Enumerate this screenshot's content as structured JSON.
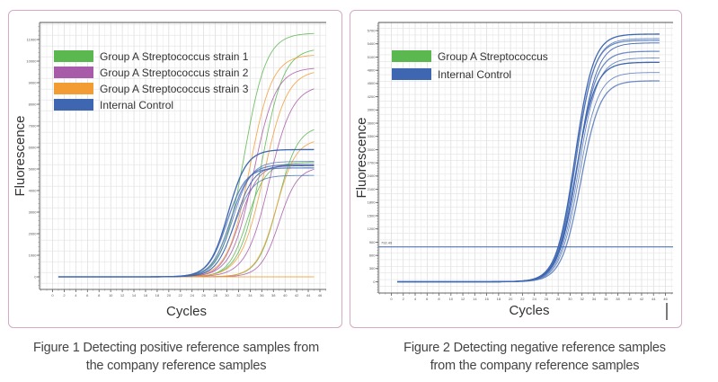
{
  "captions": {
    "figure1": [
      "Figure 1 Detecting positive reference samples from",
      "the company reference samples"
    ],
    "figure2": [
      "Figure 2 Detecting negative reference samples",
      "from the company reference samples"
    ]
  },
  "chart_data": [
    {
      "type": "line",
      "title": "",
      "xlabel": "Cycles",
      "ylabel": "Fluorescence",
      "xlim": [
        0,
        46
      ],
      "ylim": [
        -800,
        12200
      ],
      "x_ticks": [
        0,
        2,
        4,
        6,
        8,
        10,
        12,
        14,
        16,
        18,
        20,
        22,
        24,
        26,
        28,
        30,
        32,
        34,
        36,
        38,
        40,
        42,
        44,
        46
      ],
      "y_ticks": [
        0,
        1000,
        2000,
        3000,
        4000,
        5000,
        6000,
        7000,
        8000,
        9000,
        10000,
        11000
      ],
      "grid": true,
      "legend_position": "top-left",
      "legend": [
        {
          "name": "Group A Streptococcus strain 1",
          "color": "#5bb74f"
        },
        {
          "name": "Group A Streptococcus strain 2",
          "color": "#a85ba8"
        },
        {
          "name": "Group A Streptococcus strain 3",
          "color": "#f39c34"
        },
        {
          "name": "Internal Control",
          "color": "#3f67b1"
        }
      ],
      "x_range_of_curves": [
        1,
        45
      ],
      "series": [
        {
          "name": "Group A Streptococcus strain 1",
          "color": "#5bb74f",
          "curves": [
            {
              "plateau": 11300,
              "midpoint": 33.0,
              "slope": 1.9
            },
            {
              "plateau": 10600,
              "midpoint": 36.0,
              "slope": 1.9
            },
            {
              "plateau": 7000,
              "midpoint": 38.8,
              "slope": 1.7
            },
            {
              "plateau": 5300,
              "midpoint": 33.5,
              "slope": 1.6
            }
          ]
        },
        {
          "name": "Group A Streptococcus strain 2",
          "color": "#a85ba8",
          "curves": [
            {
              "plateau": 9700,
              "midpoint": 34.6,
              "slope": 1.9
            },
            {
              "plateau": 8900,
              "midpoint": 37.3,
              "slope": 2.0
            },
            {
              "plateau": 5100,
              "midpoint": 39.0,
              "slope": 1.6
            },
            {
              "plateau": 5200,
              "midpoint": 32.2,
              "slope": 1.6
            }
          ]
        },
        {
          "name": "Group A Streptococcus strain 3",
          "color": "#f39c34",
          "curves": [
            {
              "plateau": 10300,
              "midpoint": 34.0,
              "slope": 1.9
            },
            {
              "plateau": 9600,
              "midpoint": 36.4,
              "slope": 2.0
            },
            {
              "plateau": 6400,
              "midpoint": 38.5,
              "slope": 1.7
            },
            {
              "plateau": 0,
              "midpoint": 30,
              "slope": 2
            }
          ]
        },
        {
          "name": "Internal Control",
          "color": "#3f67b1",
          "curves": [
            {
              "plateau": 5900,
              "midpoint": 30.2,
              "slope": 1.6
            },
            {
              "plateau": 5350,
              "midpoint": 31.0,
              "slope": 1.6
            },
            {
              "plateau": 5200,
              "midpoint": 30.6,
              "slope": 1.6
            },
            {
              "plateau": 5150,
              "midpoint": 31.4,
              "slope": 1.6
            },
            {
              "plateau": 5050,
              "midpoint": 30.0,
              "slope": 1.6
            },
            {
              "plateau": 4700,
              "midpoint": 31.2,
              "slope": 1.6
            }
          ]
        }
      ]
    },
    {
      "type": "line",
      "title": "",
      "xlabel": "Cycles",
      "ylabel": "Fluorescence",
      "xlim": [
        -2,
        46
      ],
      "ylim": [
        -250,
        5850
      ],
      "x_ticks": [
        0,
        2,
        4,
        6,
        8,
        10,
        12,
        14,
        16,
        18,
        20,
        22,
        24,
        26,
        28,
        30,
        32,
        34,
        36,
        38,
        40,
        42,
        44,
        46
      ],
      "y_ticks": [
        0,
        300,
        600,
        900,
        1200,
        1500,
        1800,
        2100,
        2400,
        2700,
        3000,
        3300,
        3600,
        3900,
        4200,
        4500,
        4800,
        5100,
        5400,
        5700
      ],
      "grid": true,
      "legend_position": "top-left",
      "threshold": {
        "label": "792.49",
        "value": 792.49
      },
      "legend": [
        {
          "name": "Group A Streptococcus",
          "color": "#5bb74f"
        },
        {
          "name": "Internal Control",
          "color": "#3f67b1"
        }
      ],
      "x_range_of_curves": [
        1,
        45
      ],
      "series": [
        {
          "name": "Internal Control",
          "color": "#3f67b1",
          "curves": [
            {
              "plateau": 5620,
              "midpoint": 30.8,
              "slope": 1.55
            },
            {
              "plateau": 5520,
              "midpoint": 31.0,
              "slope": 1.55
            },
            {
              "plateau": 5480,
              "midpoint": 30.9,
              "slope": 1.55
            },
            {
              "plateau": 5420,
              "midpoint": 31.3,
              "slope": 1.6
            },
            {
              "plateau": 5230,
              "midpoint": 31.2,
              "slope": 1.6
            },
            {
              "plateau": 5080,
              "midpoint": 31.4,
              "slope": 1.6
            },
            {
              "plateau": 4980,
              "midpoint": 31.0,
              "slope": 1.6
            },
            {
              "plateau": 4750,
              "midpoint": 31.5,
              "slope": 1.6
            },
            {
              "plateau": 4560,
              "midpoint": 31.8,
              "slope": 1.6
            }
          ]
        }
      ]
    }
  ]
}
